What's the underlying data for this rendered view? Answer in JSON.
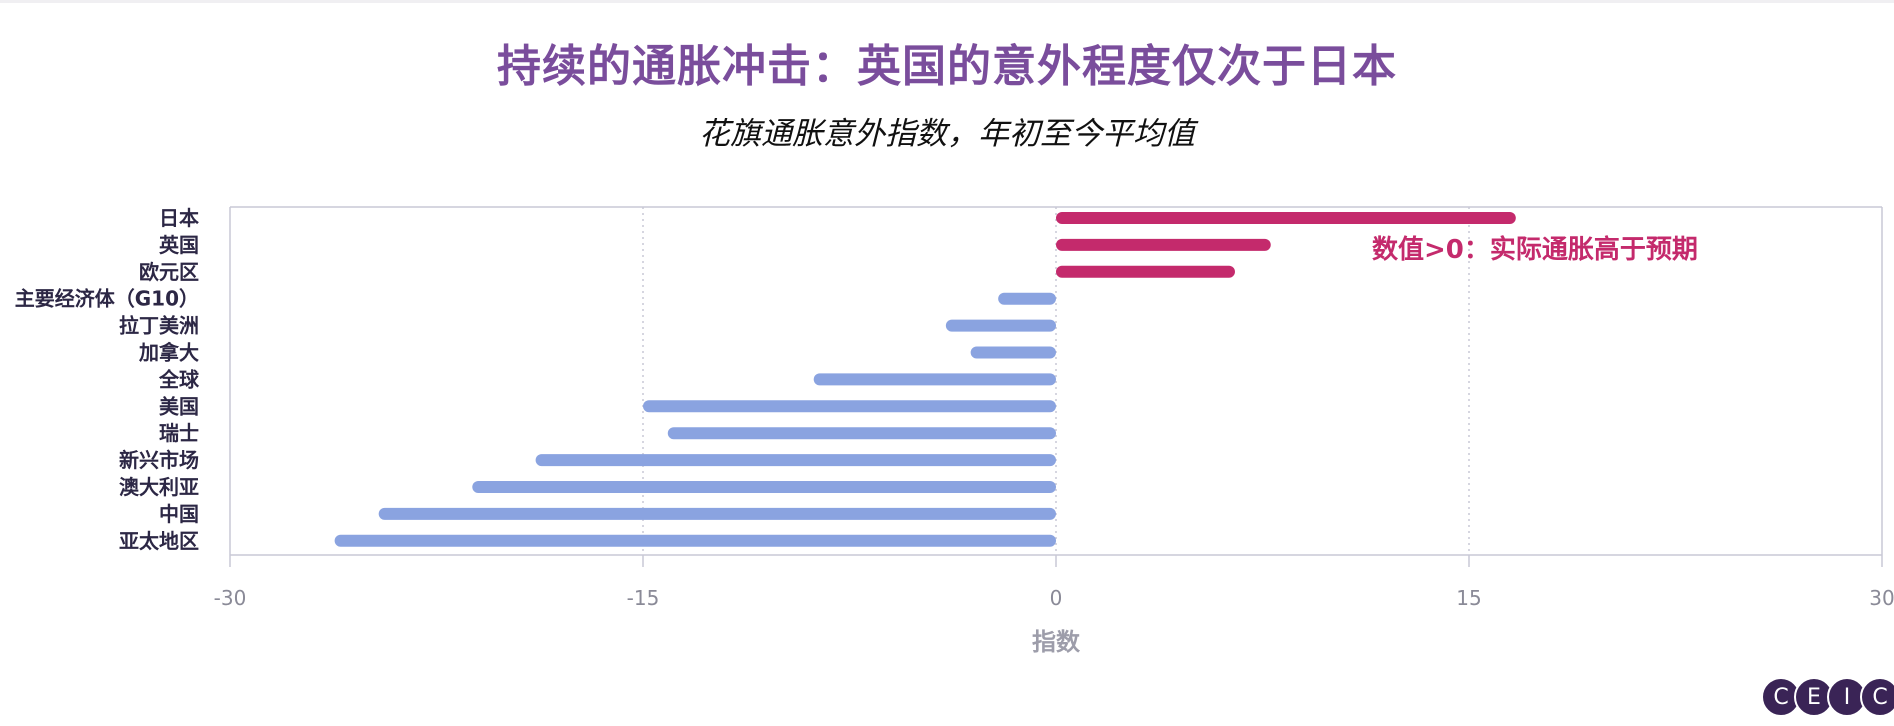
{
  "title": "持续的通胀冲击：英国的意外程度仅次于日本",
  "subtitle": "花旗通胀意外指数，年初至今平均值",
  "logo": [
    "C",
    "E",
    "I",
    "C"
  ],
  "colors": {
    "title": "#7a4d9c",
    "positive": "#c42a6c",
    "negative": "#8aa3e0",
    "axis": "#c9c9d6",
    "grid": "#c9c9d6",
    "logo": "#3a2456"
  },
  "chart_data": {
    "type": "bar",
    "orientation": "horizontal",
    "categories": [
      "日本",
      "英国",
      "欧元区",
      "主要经济体（G10）",
      "拉丁美洲",
      "加拿大",
      "全球",
      "美国",
      "瑞士",
      "新兴市场",
      "澳大利亚",
      "中国",
      "亚太地区"
    ],
    "values": [
      16.7,
      7.8,
      6.5,
      -2.1,
      -4.0,
      -3.1,
      -8.8,
      -15.0,
      -14.1,
      -18.9,
      -21.2,
      -24.6,
      -26.2
    ],
    "xlabel": "指数",
    "ylabel": "",
    "xlim": [
      -30,
      30
    ],
    "xticks": [
      -30,
      -15,
      0,
      15,
      30
    ],
    "xtick_labels": [
      "-30",
      "-15",
      "0",
      "15",
      "30"
    ],
    "grid": "vertical dotted",
    "annotation": "数值>0：实际通胀高于预期"
  }
}
